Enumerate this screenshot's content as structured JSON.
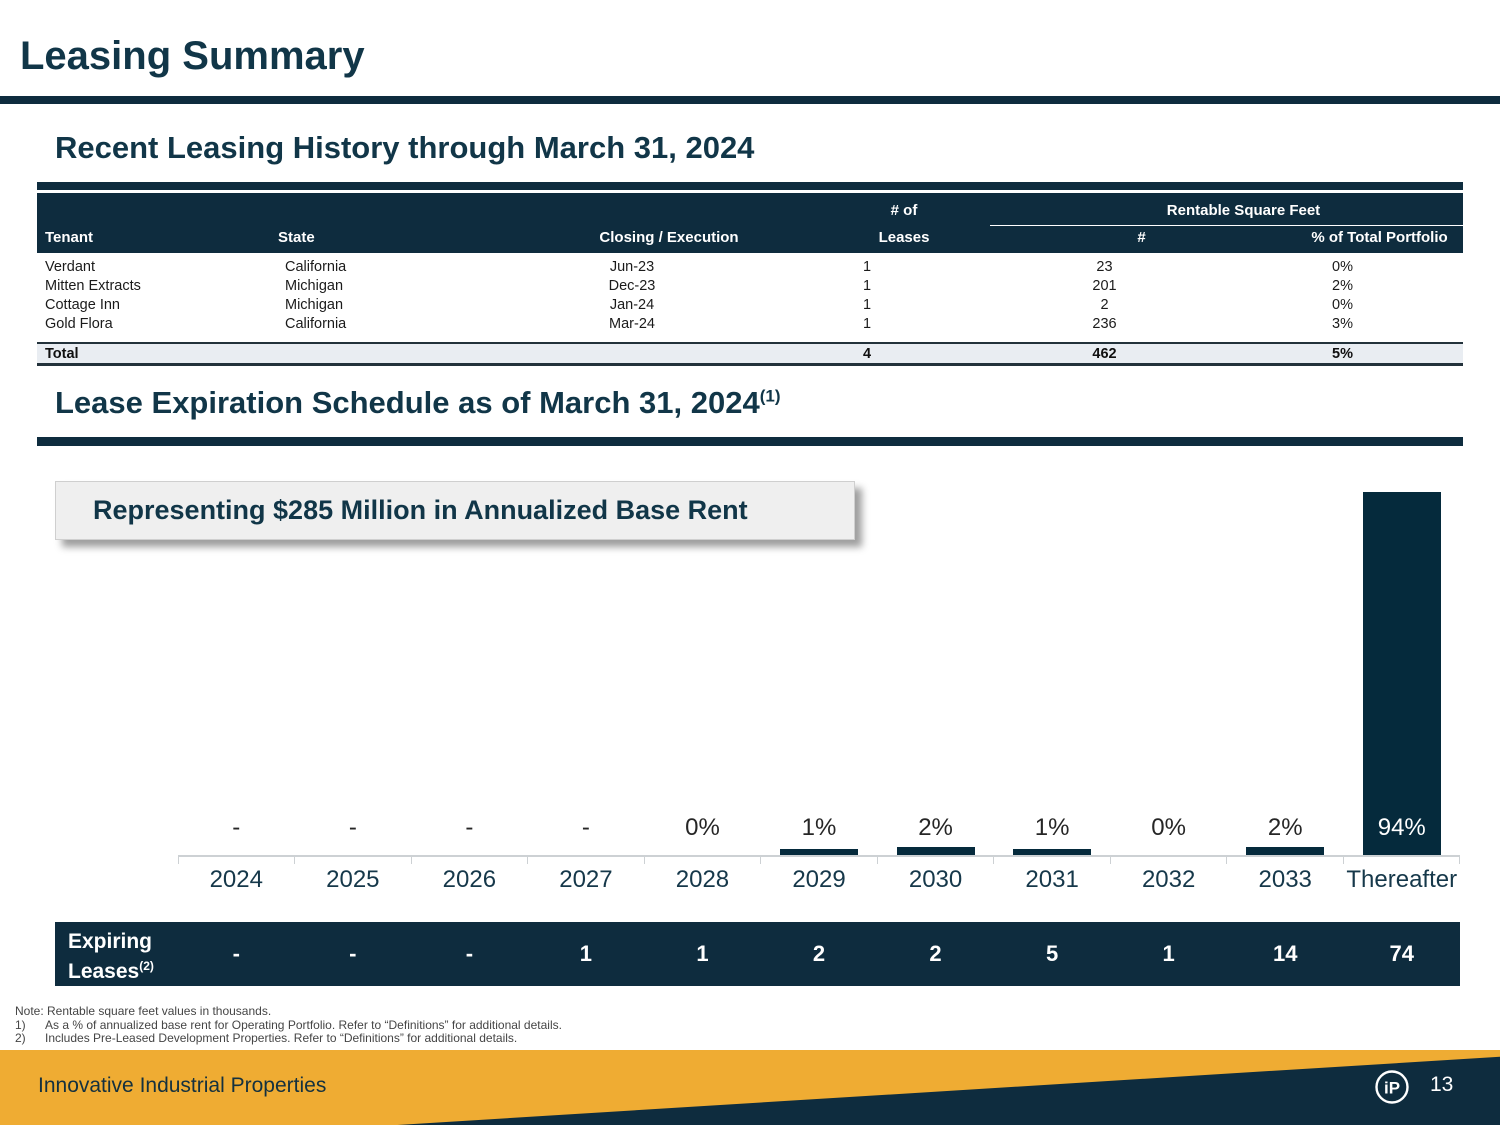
{
  "slide": {
    "title": "Leasing Summary",
    "footer_brand": "Innovative Industrial Properties",
    "page_number": "13",
    "logo_text": "iP"
  },
  "colors": {
    "navy": "#0e2c3e",
    "bar": "#052a3c",
    "gold": "#efac33",
    "total_row_bg": "#e9edf2",
    "axis_gray": "#cdd1d4"
  },
  "recent_leasing": {
    "heading": "Recent Leasing History through March 31, 2024",
    "table": {
      "headers": {
        "tenant": "Tenant",
        "state": "State",
        "closing": "Closing / Execution",
        "leases_line1": "# of",
        "leases_line2": "Leases",
        "rsf_group": "Rentable Square Feet",
        "rsf_num": "#",
        "rsf_pct": "% of Total Portfolio"
      },
      "rows": [
        {
          "tenant": "Verdant",
          "state": "California",
          "closing": "Jun-23",
          "leases": "1",
          "rsf": "23",
          "pct": "0%"
        },
        {
          "tenant": "Mitten Extracts",
          "state": "Michigan",
          "closing": "Dec-23",
          "leases": "1",
          "rsf": "201",
          "pct": "2%"
        },
        {
          "tenant": "Cottage Inn",
          "state": "Michigan",
          "closing": "Jan-24",
          "leases": "1",
          "rsf": "2",
          "pct": "0%"
        },
        {
          "tenant": "Gold Flora",
          "state": "California",
          "closing": "Mar-24",
          "leases": "1",
          "rsf": "236",
          "pct": "3%"
        }
      ],
      "total": {
        "label": "Total",
        "leases": "4",
        "rsf": "462",
        "pct": "5%"
      }
    }
  },
  "expiration": {
    "heading": "Lease Expiration Schedule as of March 31, 2024",
    "heading_superscript": "(1)",
    "callout": "Representing $285 Million in Annualized Base Rent",
    "expiring_label_line1": "Expiring",
    "expiring_label_line2": "Leases",
    "expiring_label_superscript": "(2)"
  },
  "chart_data": {
    "type": "bar",
    "title": "Lease Expiration Schedule as of March 31, 2024 (% of annualized base rent)",
    "annotation": "Representing $285 Million in Annualized Base Rent",
    "categories": [
      "2024",
      "2025",
      "2026",
      "2027",
      "2028",
      "2029",
      "2030",
      "2031",
      "2032",
      "2033",
      "Thereafter"
    ],
    "values_pct": [
      null,
      null,
      null,
      null,
      0,
      1,
      2,
      1,
      0,
      2,
      94
    ],
    "labels": [
      "-",
      "-",
      "-",
      "-",
      "0%",
      "1%",
      "2%",
      "1%",
      "0%",
      "2%",
      "94%"
    ],
    "series": [
      {
        "name": "% of annualized base rent expiring",
        "values": [
          0,
          0,
          0,
          0,
          0,
          1,
          2,
          1,
          0,
          2,
          94
        ]
      },
      {
        "name": "Expiring Leases",
        "values": [
          0,
          0,
          0,
          1,
          1,
          2,
          2,
          5,
          1,
          14,
          74
        ]
      }
    ],
    "expiring_leases_labels": [
      "-",
      "-",
      "-",
      "1",
      "1",
      "2",
      "2",
      "5",
      "1",
      "14",
      "74"
    ],
    "xlabel": "",
    "ylabel": "",
    "ylim": [
      0,
      100
    ],
    "grid": false,
    "legend": "none",
    "bar_color": "#052a3c"
  },
  "footnotes": {
    "note": "Note: Rentable square feet values in thousands.",
    "items": [
      {
        "num": "1)",
        "text": "As a % of annualized base rent for Operating Portfolio. Refer to “Definitions” for additional details."
      },
      {
        "num": "2)",
        "text": "Includes Pre-Leased Development Properties. Refer to “Definitions” for additional details."
      }
    ]
  }
}
